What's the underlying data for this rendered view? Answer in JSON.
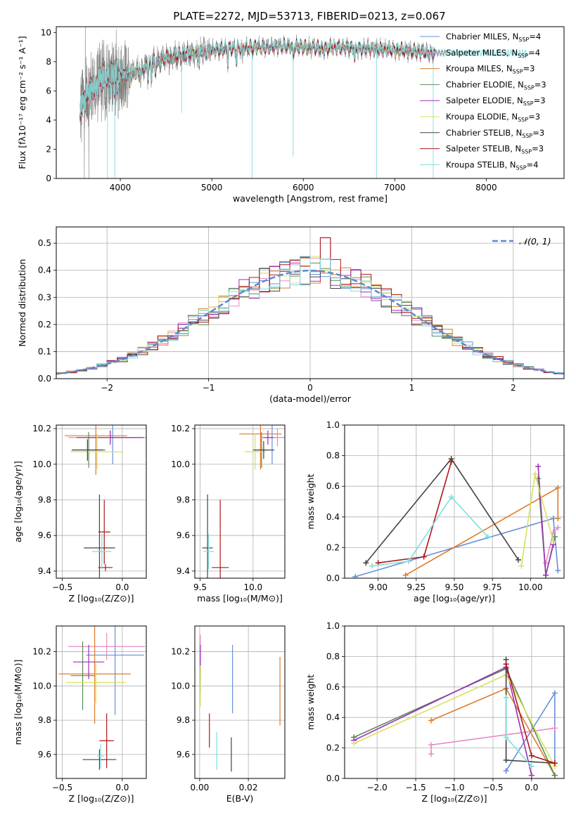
{
  "figure": {
    "title": "PLATE=2272, MJD=53713, FIBERID=0213, z=0.067"
  },
  "chart_data": [
    {
      "id": "spectrum",
      "type": "line",
      "xlabel": "wavelength [Angstrom, rest frame]",
      "ylabel": "Flux [fλ10⁻¹⁷ erg cm⁻² s⁻¹ A⁻¹]",
      "xlim": [
        3300,
        8850
      ],
      "ylim": [
        0,
        10.4
      ],
      "xticks": [
        4000,
        5000,
        6000,
        7000,
        8000
      ],
      "yticks": [
        0,
        2,
        4,
        6,
        8,
        10
      ],
      "grid": false,
      "legend_position": "right",
      "legend": [
        {
          "label": "Chabrier MILES, N_SSP=4",
          "color": "#6a8fd8"
        },
        {
          "label": "Salpeter MILES, N_SSP=4",
          "color": "#e88ac4"
        },
        {
          "label": "Kroupa MILES, N_SSP=3",
          "color": "#e07b28"
        },
        {
          "label": "Chabrier ELODIE, N_SSP=3",
          "color": "#5a8a5a"
        },
        {
          "label": "Salpeter ELODIE, N_SSP=3",
          "color": "#9b30b8"
        },
        {
          "label": "Kroupa ELODIE, N_SSP=3",
          "color": "#d8e060"
        },
        {
          "label": "Chabrier STELIB, N_SSP=3",
          "color": "#444444"
        },
        {
          "label": "Salpeter STELIB, N_SSP=3",
          "color": "#b01818"
        },
        {
          "label": "Kroupa STELIB, N_SSP=4",
          "color": "#7fdede"
        }
      ],
      "data_color": "#808080",
      "continuum": {
        "x": [
          3550,
          3650,
          3750,
          3850,
          3950,
          4050,
          4150,
          4250,
          4350,
          4450,
          4600,
          4800,
          5000,
          5200,
          5400,
          5600,
          5800,
          6000,
          6200,
          6400,
          6600,
          6800,
          7000,
          7200,
          7400,
          7500
        ],
        "y": [
          4.8,
          5.8,
          6.6,
          7.0,
          7.1,
          7.1,
          7.3,
          7.6,
          7.9,
          8.1,
          8.4,
          8.6,
          8.8,
          8.9,
          9.0,
          9.0,
          9.1,
          9.0,
          8.9,
          9.0,
          8.9,
          8.9,
          8.8,
          8.7,
          8.6,
          8.6
        ]
      }
    },
    {
      "id": "residuals",
      "type": "step",
      "xlabel": "(data-model)/error",
      "ylabel": "Normed distribution",
      "xlim": [
        -2.5,
        2.5
      ],
      "ylim": [
        0,
        0.56
      ],
      "xticks": [
        -2,
        -1,
        0,
        1,
        2
      ],
      "xtick_labels": [
        "−2",
        "−1",
        "0",
        "1",
        "2"
      ],
      "yticks": [
        0.0,
        0.1,
        0.2,
        0.3,
        0.4,
        0.5
      ],
      "ytick_labels": [
        "0.0",
        "0.1",
        "0.2",
        "0.3",
        "0.4",
        "0.5"
      ],
      "grid": true,
      "legend_position": "top-right",
      "reference_label": "𝒩(0, 1)",
      "reference_color": "#5f87cf",
      "bin_width": 0.1
    },
    {
      "id": "age_vs_Z",
      "type": "errorbar",
      "xlabel": "Z [log₁₀(Z/Z⊙)]",
      "ylabel": "age  [log₁₀(age/yr)]",
      "xlim": [
        -0.55,
        0.2
      ],
      "ylim": [
        9.36,
        10.22
      ],
      "xticks": [
        -0.5,
        0.0
      ],
      "xtick_labels": [
        "−0.5",
        "0.0"
      ],
      "yticks": [
        9.4,
        9.6,
        9.8,
        10.0,
        10.2
      ],
      "ytick_labels": [
        "9.4",
        "9.6",
        "9.8",
        "10.0",
        "10.2"
      ],
      "grid": true,
      "points": [
        {
          "color": "#6a8fd8",
          "x": -0.08,
          "xerr": 0.24,
          "y": 10.15,
          "yerr": 0.15
        },
        {
          "color": "#e88ac4",
          "x": -0.1,
          "xerr": 0.35,
          "y": 10.15,
          "yerr": 0.04
        },
        {
          "color": "#e07b28",
          "x": -0.22,
          "xerr": 0.26,
          "y": 10.16,
          "yerr": 0.22
        },
        {
          "color": "#5a8a5a",
          "x": -0.28,
          "xerr": 0.14,
          "y": 10.08,
          "yerr": 0.1
        },
        {
          "color": "#9b30b8",
          "x": -0.1,
          "xerr": 0.28,
          "y": 10.15,
          "yerr": 0.04
        },
        {
          "color": "#d8e060",
          "x": -0.21,
          "xerr": 0.22,
          "y": 10.07,
          "yerr": 0.1
        },
        {
          "color": "#444444",
          "x": -0.29,
          "xerr": 0.13,
          "y": 10.08,
          "yerr": 0.06
        },
        {
          "color": "#b01818",
          "x": -0.14,
          "xerr": 0.06,
          "y": 9.42,
          "yerr": 0.02
        },
        {
          "color": "#444444",
          "x": -0.19,
          "xerr": 0.13,
          "y": 9.53,
          "yerr": 0.3
        },
        {
          "color": "#b01818",
          "x": -0.15,
          "xerr": 0.05,
          "y": 9.62,
          "yerr": 0.18
        },
        {
          "color": "#7fdede",
          "x": -0.17,
          "xerr": 0.08,
          "y": 9.51,
          "yerr": 0.1
        }
      ]
    },
    {
      "id": "age_vs_mass",
      "type": "errorbar",
      "xlabel": "mass [log₁₀(M/M⊙)]",
      "ylabel": "",
      "xlim": [
        9.45,
        10.3
      ],
      "ylim": [
        9.36,
        10.22
      ],
      "xticks": [
        9.5,
        10.0
      ],
      "xtick_labels": [
        "9.5",
        "10.0"
      ],
      "yticks": [
        9.4,
        9.6,
        9.8,
        10.0,
        10.2
      ],
      "ytick_labels": [
        "9.4",
        "9.6",
        "9.8",
        "10.0",
        "10.2"
      ],
      "grid": true,
      "points": [
        {
          "color": "#6a8fd8",
          "x": 10.18,
          "xerr": 0.06,
          "y": 10.15,
          "yerr": 0.15
        },
        {
          "color": "#e88ac4",
          "x": 10.23,
          "xerr": 0.08,
          "y": 10.15,
          "yerr": 0.05
        },
        {
          "color": "#e07b28",
          "x": 10.07,
          "xerr": 0.2,
          "y": 10.17,
          "yerr": 0.2
        },
        {
          "color": "#5a8a5a",
          "x": 10.08,
          "xerr": 0.06,
          "y": 10.08,
          "yerr": 0.1
        },
        {
          "color": "#9b30b8",
          "x": 10.14,
          "xerr": 0.05,
          "y": 10.15,
          "yerr": 0.04
        },
        {
          "color": "#d8e060",
          "x": 10.02,
          "xerr": 0.1,
          "y": 10.07,
          "yerr": 0.1
        },
        {
          "color": "#444444",
          "x": 10.1,
          "xerr": 0.1,
          "y": 10.08,
          "yerr": 0.05
        },
        {
          "color": "#444444",
          "x": 9.57,
          "xerr": 0.05,
          "y": 9.53,
          "yerr": 0.3
        },
        {
          "color": "#b01818",
          "x": 9.69,
          "xerr": 0.08,
          "y": 9.42,
          "yerr": 0.38
        },
        {
          "color": "#7fdede",
          "x": 9.58,
          "xerr": 0.05,
          "y": 9.51,
          "yerr": 0.1
        }
      ]
    },
    {
      "id": "weight_vs_age",
      "type": "line",
      "xlabel": "age  [log₁₀(age/yr)]",
      "ylabel": "mass weight",
      "xlim": [
        8.78,
        10.22
      ],
      "ylim": [
        0,
        1.0
      ],
      "xticks": [
        9.0,
        9.25,
        9.5,
        9.75,
        10.0
      ],
      "xtick_labels": [
        "9.00",
        "9.25",
        "9.50",
        "9.75",
        "10.00"
      ],
      "yticks": [
        0.0,
        0.2,
        0.4,
        0.6,
        0.8,
        1.0
      ],
      "ytick_labels": [
        "0.0",
        "0.2",
        "0.4",
        "0.6",
        "0.8",
        "1.0"
      ],
      "grid": true,
      "series": [
        {
          "color": "#6a8fd8",
          "x": [
            8.85,
            10.15,
            10.18
          ],
          "y": [
            0.01,
            0.39,
            0.05
          ]
        },
        {
          "color": "#e88ac4",
          "x": [
            10.1,
            10.15,
            10.18
          ],
          "y": [
            0.1,
            0.3,
            0.33
          ]
        },
        {
          "color": "#e07b28",
          "x": [
            9.18,
            10.18,
            10.18
          ],
          "y": [
            0.02,
            0.59,
            0.39
          ]
        },
        {
          "color": "#5a8a5a",
          "x": [
            10.05,
            10.1,
            10.16
          ],
          "y": [
            0.65,
            0.02,
            0.27
          ]
        },
        {
          "color": "#9b30b8",
          "x": [
            10.05,
            10.1,
            10.15
          ],
          "y": [
            0.73,
            0.02,
            0.22
          ]
        },
        {
          "color": "#d8e060",
          "x": [
            9.94,
            10.03,
            10.15
          ],
          "y": [
            0.08,
            0.68,
            0.24
          ]
        },
        {
          "color": "#444444",
          "x": [
            8.92,
            9.48,
            9.92
          ],
          "y": [
            0.1,
            0.78,
            0.12
          ]
        },
        {
          "color": "#b01818",
          "x": [
            9.0,
            9.3,
            9.48
          ],
          "y": [
            0.1,
            0.14,
            0.76
          ]
        },
        {
          "color": "#7fdede",
          "x": [
            8.96,
            9.2,
            9.48,
            9.72
          ],
          "y": [
            0.08,
            0.11,
            0.53,
            0.27
          ]
        }
      ]
    },
    {
      "id": "mass_vs_Z",
      "type": "errorbar",
      "xlabel": "Z [log₁₀(Z/Z⊙)]",
      "ylabel": "mass [log₁₀(M/M⊙)]",
      "xlim": [
        -0.55,
        0.2
      ],
      "ylim": [
        9.46,
        10.35
      ],
      "xticks": [
        -0.5,
        0.0
      ],
      "xtick_labels": [
        "−0.5",
        "0.0"
      ],
      "yticks": [
        9.6,
        9.8,
        10.0,
        10.2
      ],
      "ytick_labels": [
        "9.6",
        "9.8",
        "10.0",
        "10.2"
      ],
      "grid": true,
      "points": [
        {
          "color": "#6a8fd8",
          "x": -0.06,
          "xerr": 0.24,
          "y": 10.18,
          "yerr": 0.35
        },
        {
          "color": "#e88ac4",
          "x": -0.13,
          "xerr": 0.32,
          "y": 10.23,
          "yerr": 0.08
        },
        {
          "color": "#e07b28",
          "x": -0.23,
          "xerr": 0.3,
          "y": 10.07,
          "yerr": 0.29
        },
        {
          "color": "#5a8a5a",
          "x": -0.33,
          "xerr": 0.1,
          "y": 10.06,
          "yerr": 0.2
        },
        {
          "color": "#9b30b8",
          "x": -0.28,
          "xerr": 0.13,
          "y": 10.14,
          "yerr": 0.1
        },
        {
          "color": "#d8e060",
          "x": -0.22,
          "xerr": 0.25,
          "y": 10.02,
          "yerr": 0.12
        },
        {
          "color": "#444444",
          "x": -0.19,
          "xerr": 0.14,
          "y": 9.57,
          "yerr": 0.06
        },
        {
          "color": "#b01818",
          "x": -0.13,
          "xerr": 0.06,
          "y": 9.68,
          "yerr": 0.16
        },
        {
          "color": "#7fdede",
          "x": -0.18,
          "xerr": 0.03,
          "y": 9.59,
          "yerr": 0.07
        }
      ]
    },
    {
      "id": "mass_vs_EBV",
      "type": "errorbar",
      "xlabel": "E(B-V)",
      "ylabel": "",
      "xlim": [
        -0.002,
        0.035
      ],
      "ylim": [
        9.46,
        10.35
      ],
      "xticks": [
        0.0,
        0.02
      ],
      "xtick_labels": [
        "0.00",
        "0.02"
      ],
      "yticks": [
        9.6,
        9.8,
        10.0,
        10.2
      ],
      "ytick_labels": [
        "9.6",
        "9.8",
        "10.0",
        "10.2"
      ],
      "grid": true,
      "points": [
        {
          "color": "#6a8fd8",
          "x": 0.0135,
          "xerr": 0,
          "y": 10.04,
          "yerr": 0.2
        },
        {
          "color": "#e88ac4",
          "x": 0.0003,
          "xerr": 0,
          "y": 10.22,
          "yerr": 0.08
        },
        {
          "color": "#e07b28",
          "x": 0.033,
          "xerr": 0,
          "y": 9.97,
          "yerr": 0.2
        },
        {
          "color": "#5a8a5a",
          "x": 0.0003,
          "xerr": 0,
          "y": 10.05,
          "yerr": 0.08
        },
        {
          "color": "#9b30b8",
          "x": 0.0003,
          "xerr": 0,
          "y": 10.14,
          "yerr": 0.1
        },
        {
          "color": "#d8e060",
          "x": 0.0003,
          "xerr": 0,
          "y": 10.0,
          "yerr": 0.12
        },
        {
          "color": "#444444",
          "x": 0.013,
          "xerr": 0,
          "y": 9.6,
          "yerr": 0.1
        },
        {
          "color": "#b01818",
          "x": 0.004,
          "xerr": 0,
          "y": 9.74,
          "yerr": 0.1
        },
        {
          "color": "#7fdede",
          "x": 0.007,
          "xerr": 0,
          "y": 9.62,
          "yerr": 0.11
        }
      ]
    },
    {
      "id": "weight_vs_Z",
      "type": "line",
      "xlabel": "Z [log₁₀(Z/Z⊙)]",
      "ylabel": "mass weight",
      "xlim": [
        -2.42,
        0.42
      ],
      "ylim": [
        0,
        1.0
      ],
      "xticks": [
        -2.0,
        -1.5,
        -1.0,
        -0.5,
        0.0
      ],
      "xtick_labels": [
        "−2.0",
        "−1.5",
        "−1.0",
        "−0.5",
        "0.0"
      ],
      "yticks": [
        0.0,
        0.2,
        0.4,
        0.6,
        0.8,
        1.0
      ],
      "ytick_labels": [
        "0.0",
        "0.2",
        "0.4",
        "0.6",
        "0.8",
        "1.0"
      ],
      "grid": true,
      "series": [
        {
          "color": "#6a8fd8",
          "x": [
            -0.33,
            0.3,
            0.3
          ],
          "y": [
            0.05,
            0.56,
            0.1
          ]
        },
        {
          "color": "#e88ac4",
          "x": [
            -1.3,
            -1.3,
            0.3
          ],
          "y": [
            0.16,
            0.22,
            0.33
          ]
        },
        {
          "color": "#e07b28",
          "x": [
            -1.3,
            -0.33,
            0.3
          ],
          "y": [
            0.38,
            0.59,
            0.02
          ]
        },
        {
          "color": "#5a8a5a",
          "x": [
            -2.3,
            -0.33,
            0.3
          ],
          "y": [
            0.27,
            0.72,
            0.02
          ]
        },
        {
          "color": "#9b30b8",
          "x": [
            -2.3,
            -0.33,
            0.0
          ],
          "y": [
            0.25,
            0.73,
            0.02
          ]
        },
        {
          "color": "#d8e060",
          "x": [
            -2.3,
            -0.33,
            0.3
          ],
          "y": [
            0.23,
            0.68,
            0.08
          ]
        },
        {
          "color": "#444444",
          "x": [
            -0.33,
            -0.33,
            0.3
          ],
          "y": [
            0.78,
            0.12,
            0.1
          ]
        },
        {
          "color": "#b01818",
          "x": [
            -0.33,
            0.0,
            0.3
          ],
          "y": [
            0.75,
            0.15,
            0.1
          ]
        },
        {
          "color": "#7fdede",
          "x": [
            -0.33,
            -0.33,
            0.0
          ],
          "y": [
            0.53,
            0.27,
            0.08
          ]
        }
      ]
    }
  ]
}
